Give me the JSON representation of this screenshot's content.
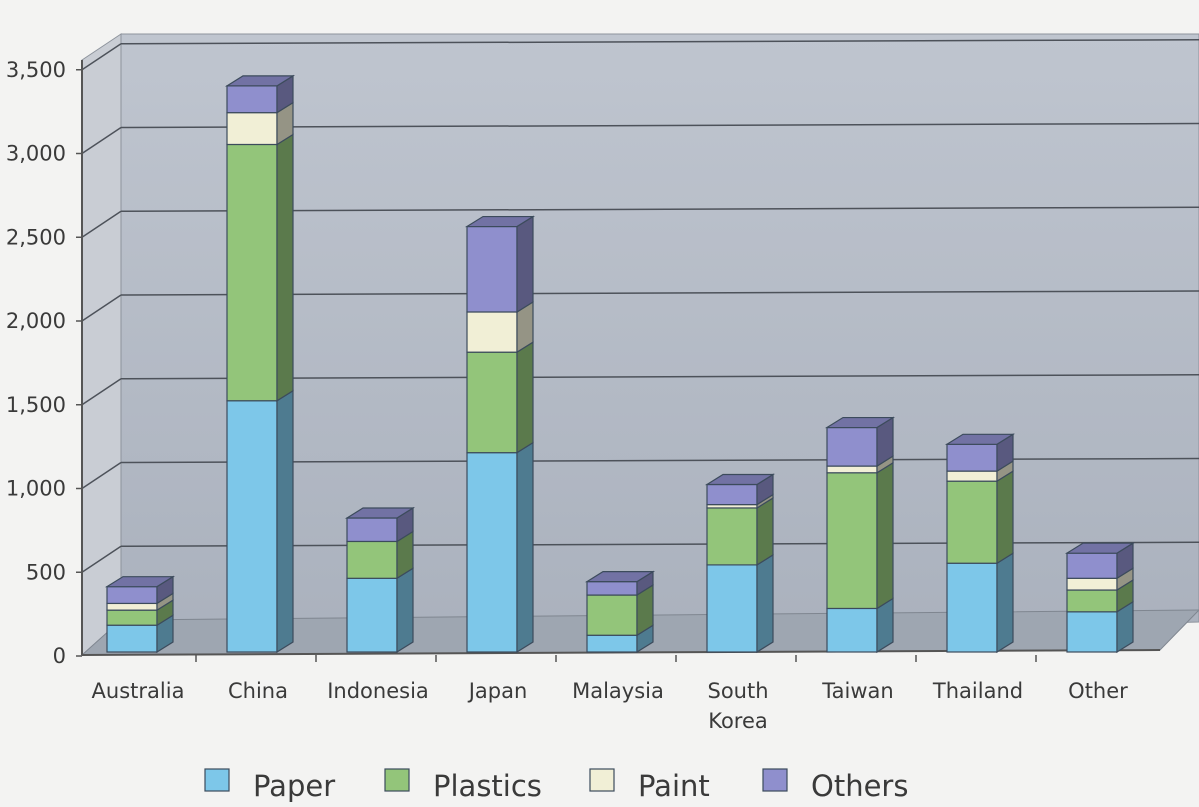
{
  "chart_data": {
    "type": "bar",
    "stacked": true,
    "three_d": true,
    "categories": [
      "Australia",
      "China",
      "Indonesia",
      "Japan",
      "Malaysia",
      "South Korea",
      "Taiwan",
      "Thailand",
      "Other"
    ],
    "category_lines": [
      [
        "Australia"
      ],
      [
        "China"
      ],
      [
        "Indonesia"
      ],
      [
        "Japan"
      ],
      [
        "Malaysia"
      ],
      [
        "South",
        "Korea"
      ],
      [
        "Taiwan"
      ],
      [
        "Thailand"
      ],
      [
        "Other"
      ]
    ],
    "series": [
      {
        "name": "Paper",
        "color": "#7dc7e9",
        "values": [
          160,
          1500,
          440,
          1190,
          100,
          520,
          260,
          530,
          240
        ]
      },
      {
        "name": "Plastics",
        "color": "#93c57a",
        "values": [
          90,
          1530,
          220,
          600,
          240,
          340,
          810,
          490,
          130
        ]
      },
      {
        "name": "Paint",
        "color": "#f1efd6",
        "values": [
          40,
          190,
          0,
          240,
          0,
          20,
          40,
          60,
          70
        ]
      },
      {
        "name": "Others",
        "color": "#8f8fcd",
        "values": [
          100,
          160,
          140,
          510,
          80,
          120,
          230,
          160,
          150
        ]
      }
    ],
    "yticks": [
      "0",
      "500",
      "1,000",
      "1,500",
      "2,000",
      "2,500",
      "3,000",
      "3,500"
    ],
    "ylim": [
      0,
      3500
    ],
    "grid": true,
    "legend_position": "bottom",
    "title": "",
    "xlabel": "",
    "ylabel": ""
  }
}
